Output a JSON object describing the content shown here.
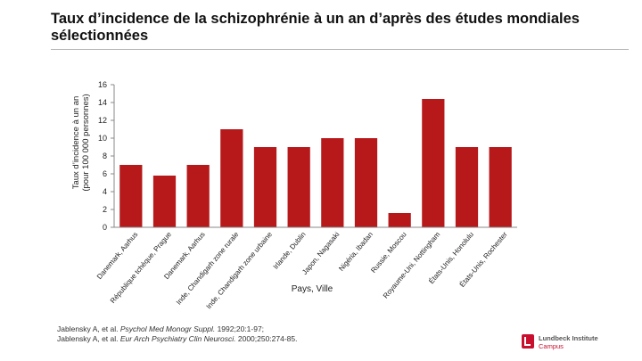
{
  "header": {
    "title": "Taux d’incidence de la schizophrénie à un an d’après des études mondiales sélectionnées"
  },
  "chart_data": {
    "type": "bar",
    "title": "Taux d’incidence de la schizophrénie à un an d’après des études mondiales sélectionnées",
    "xlabel": "Pays, Ville",
    "ylabel": "Taux d’incidence à un an (pour 100 000 personnes)",
    "ylabel_lines": [
      "Taux d’incidence à un an",
      "(pour 100 000 personnes)"
    ],
    "ylim": [
      0,
      16
    ],
    "yticks": [
      0,
      2,
      4,
      6,
      8,
      10,
      12,
      14,
      16
    ],
    "grid": false,
    "bar_color": "#b7191b",
    "categories": [
      "Danemark, Aarhus",
      "République tchèque, Prague",
      "Danemark, Aarhus",
      "Inde, Chandigarh zone rurale",
      "Inde, Chandigarh zone urbaine",
      "Irlande, Dublin",
      "Japon, Nagasaki",
      "Nigéria, Ibadan",
      "Russie, Moscou",
      "Royaume-Uni, Nottingham",
      "États-Unis, Honolulu",
      "États-Unis, Rochester"
    ],
    "values": [
      7,
      5.8,
      7,
      11,
      9,
      9,
      10,
      10,
      1.6,
      14.4,
      9,
      9
    ]
  },
  "footer": {
    "authors": "Jablensky A, et al.",
    "ref1_journal": "Psychol Med Monogr Suppl.",
    "ref1_details": "1992;20:1-97;",
    "ref2_journal": "Eur Arch Psychiatry Clin Neurosci.",
    "ref2_details": "2000;250:274-85."
  },
  "logo": {
    "name": "Lundbeck Institute",
    "subtitle": "Campus",
    "color": "#c8102e"
  }
}
